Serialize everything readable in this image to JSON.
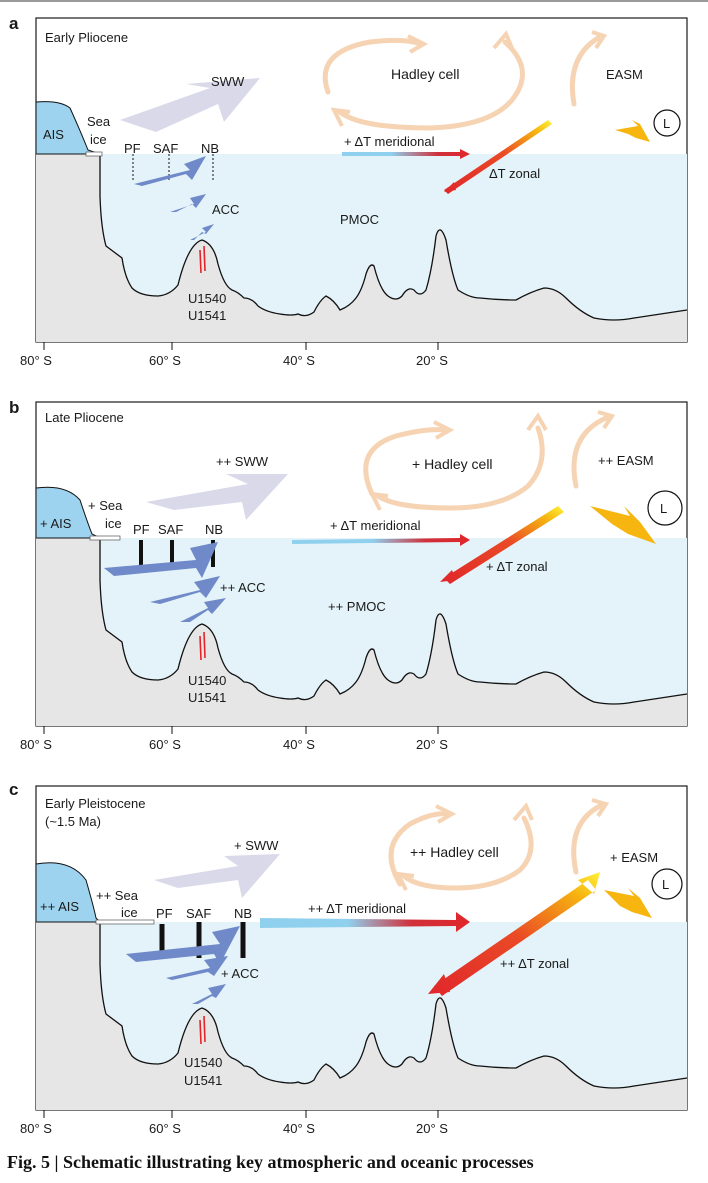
{
  "colors": {
    "ocean": "#e3f3f9",
    "seafloor": "#e6e6e6",
    "ice": "#9dd3ef",
    "atmos_arrow": "#f5d3b3",
    "front_arrow": "#6f89c9",
    "sww_arrow": "#d9d9ea",
    "meridional_cool": "#8fd0ee",
    "meridional_warm": "#e0262b",
    "zonal_warm": "#fff23a",
    "easm": "#f6b60f",
    "core_marks": "#e0262b"
  },
  "x_axis": {
    "ticks": [
      "80° S",
      "60° S",
      "40° S",
      "20° S"
    ]
  },
  "panels": [
    {
      "letter": "a",
      "title": "Early Pliocene",
      "title2": "",
      "ais": "AIS",
      "sea_ice": [
        "Sea",
        "ice"
      ],
      "sww": "SWW",
      "hadley": "Hadley cell",
      "easm": "EASM",
      "meridional": "+ ΔT meridional",
      "zonal": "ΔT zonal",
      "acc": "ACC",
      "pmoc": "PMOC",
      "fronts": [
        "PF",
        "SAF",
        "NB"
      ],
      "sites": [
        "U1540",
        "U1541"
      ],
      "low": "L"
    },
    {
      "letter": "b",
      "title": "Late Pliocene",
      "title2": "",
      "ais": "+ AIS",
      "sea_ice": [
        "+ Sea",
        "ice"
      ],
      "sww": "++ SWW",
      "hadley": "+ Hadley cell",
      "easm": "++ EASM",
      "meridional": "+ ΔT meridional",
      "zonal": "+ ΔT zonal",
      "acc": "++ ACC",
      "pmoc": "++ PMOC",
      "fronts": [
        "PF",
        "SAF",
        "NB"
      ],
      "sites": [
        "U1540",
        "U1541"
      ],
      "low": "L"
    },
    {
      "letter": "c",
      "title": "Early Pleistocene",
      "title2": "(~1.5 Ma)",
      "ais": "++ AIS",
      "sea_ice": [
        "++ Sea",
        "ice"
      ],
      "sww": "+ SWW",
      "hadley": "++ Hadley cell",
      "easm": "+ EASM",
      "meridional": "++ ΔT meridional",
      "zonal": "++ ΔT zonal",
      "acc": "+ ACC",
      "pmoc": "",
      "fronts": [
        "PF",
        "SAF",
        "NB"
      ],
      "sites": [
        "U1540",
        "U1541"
      ],
      "low": "L"
    }
  ],
  "caption": "Fig. 5 | Schematic illustrating key atmospheric and oceanic processes"
}
